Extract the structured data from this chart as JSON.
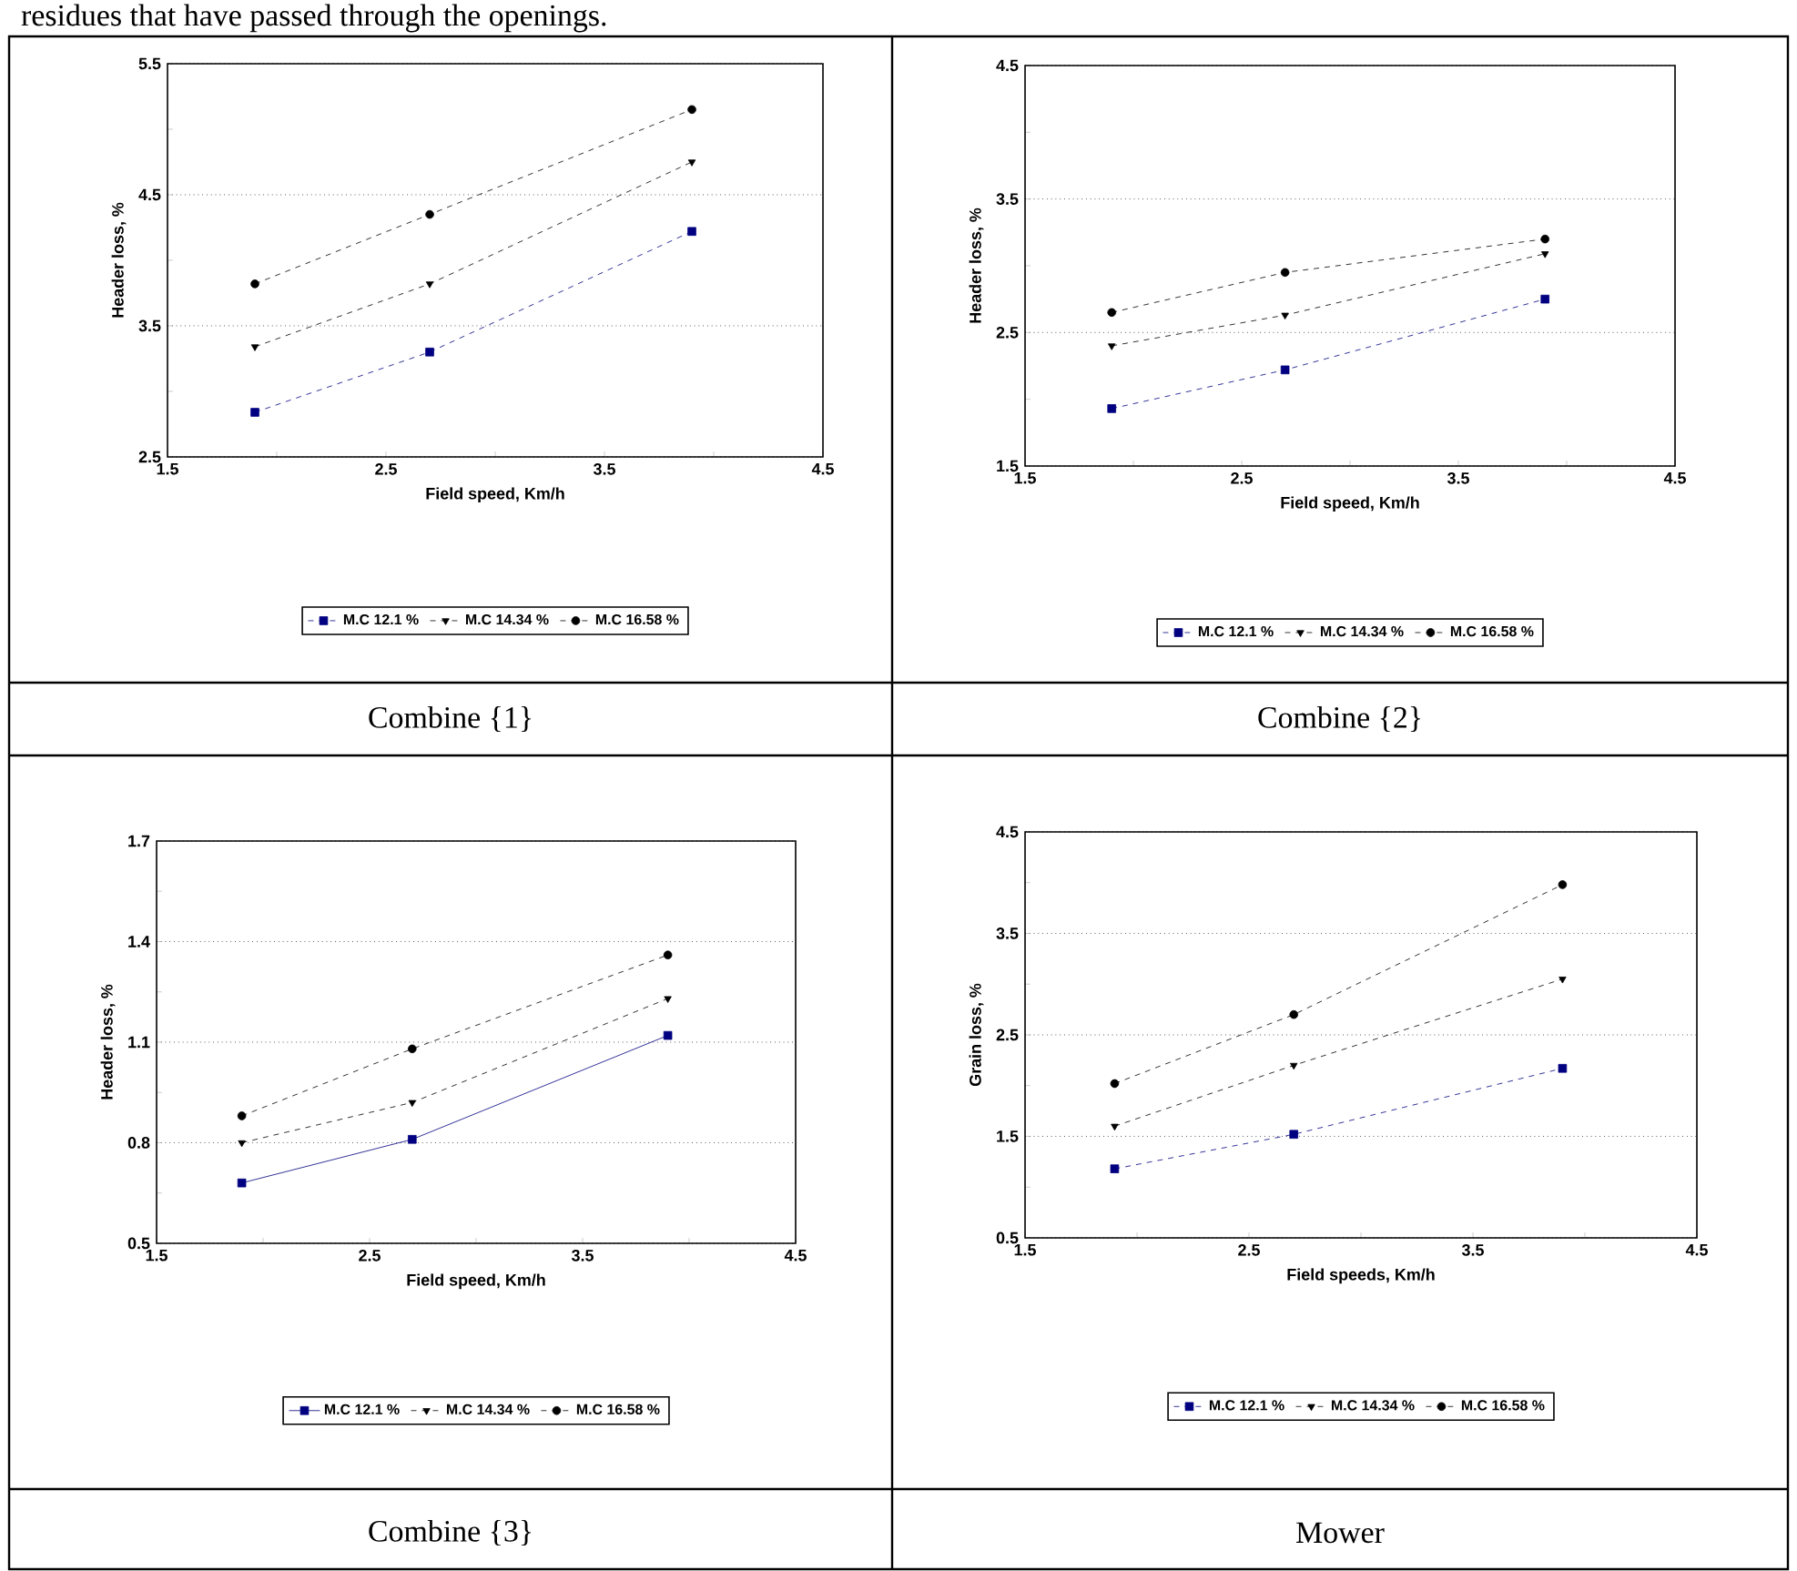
{
  "chart_data": [
    {
      "type": "line",
      "xlabel": "Field speed, Km/h",
      "ylabel": "Header loss, %",
      "annotations": [
        "residues that have passed through the openings.",
        "Combine {1}"
      ],
      "xlim": [
        1.5,
        4.5
      ],
      "xticks": [
        1.5,
        {
          "value": 2.0,
          "label": null
        },
        2.5,
        {
          "value": 3.0,
          "label": null
        },
        3.5,
        {
          "value": 4.0,
          "label": null
        },
        4.5
      ],
      "ylim": [
        2.5,
        5.5
      ],
      "yticks": [
        2.5,
        {
          "value": 3.0,
          "label": null
        },
        3.5,
        {
          "value": 4.0,
          "label": null
        },
        4.5,
        {
          "value": 5.0,
          "label": null
        },
        5.5
      ],
      "grid": "y",
      "legend": "bottom",
      "x": [
        1.9,
        2.7,
        3.9
      ],
      "series": [
        {
          "name": "M.C 12.1 %",
          "color": "#000080",
          "marker": "square",
          "line_style": "dashed",
          "values": [
            2.84,
            3.3,
            4.22
          ]
        },
        {
          "name": "M.C 14.34 %",
          "color": "#000000",
          "marker": "triangle",
          "line_style": "dashed",
          "values": [
            3.34,
            3.82,
            4.75
          ]
        },
        {
          "name": "M.C 16.58 %",
          "color": "#000000",
          "marker": "circle",
          "line_style": "dashed",
          "values": [
            3.82,
            4.35,
            5.15
          ]
        }
      ]
    },
    {
      "type": "line",
      "xlabel": "Field speed, Km/h",
      "ylabel": "Header loss, %",
      "annotations": [
        "Combine {2}"
      ],
      "xlim": [
        1.5,
        4.5
      ],
      "xticks": [
        1.5,
        {
          "value": 2.0,
          "label": null
        },
        2.5,
        {
          "value": 3.0,
          "label": null
        },
        3.5,
        {
          "value": 4.0,
          "label": null
        },
        4.5
      ],
      "ylim": [
        1.5,
        4.5
      ],
      "yticks": [
        1.5,
        {
          "value": 2.0,
          "label": null
        },
        2.5,
        {
          "value": 3.0,
          "label": null
        },
        3.5,
        {
          "value": 4.0,
          "label": null
        },
        4.5
      ],
      "grid": "y",
      "legend": "bottom",
      "x": [
        1.9,
        2.7,
        3.9
      ],
      "series": [
        {
          "name": "M.C 12.1 %",
          "color": "#000080",
          "marker": "square",
          "line_style": "dashed",
          "values": [
            1.93,
            2.22,
            2.75
          ]
        },
        {
          "name": "M.C 14.34 %",
          "color": "#000000",
          "marker": "triangle",
          "line_style": "dashed",
          "values": [
            2.4,
            2.63,
            3.09
          ]
        },
        {
          "name": "M.C 16.58 %",
          "color": "#000000",
          "marker": "circle",
          "line_style": "dashed",
          "values": [
            2.65,
            2.95,
            3.2
          ]
        }
      ]
    },
    {
      "type": "line",
      "xlabel": "Field speed, Km/h",
      "ylabel": "Header loss, %",
      "annotations": [
        "Combine {3}"
      ],
      "xlim": [
        1.5,
        4.5
      ],
      "xticks": [
        1.5,
        {
          "value": 2.0,
          "label": null
        },
        2.5,
        {
          "value": 3.0,
          "label": null
        },
        3.5,
        {
          "value": 4.0,
          "label": null
        },
        4.5
      ],
      "ylim": [
        0.5,
        1.7
      ],
      "yticks": [
        0.5,
        {
          "value": 0.65,
          "label": null
        },
        0.8,
        {
          "value": 0.95,
          "label": null
        },
        1.1,
        {
          "value": 1.25,
          "label": null
        },
        1.4,
        {
          "value": 1.55,
          "label": null
        },
        1.7
      ],
      "grid": "y",
      "legend": "bottom",
      "x": [
        1.9,
        2.7,
        3.9
      ],
      "series": [
        {
          "name": "M.C 12.1 %",
          "color": "#000080",
          "marker": "square",
          "line_style": "solid",
          "values": [
            0.68,
            0.81,
            1.12
          ]
        },
        {
          "name": "M.C 14.34 %",
          "color": "#000000",
          "marker": "triangle",
          "line_style": "dashed",
          "values": [
            0.8,
            0.92,
            1.23
          ]
        },
        {
          "name": "M.C 16.58 %",
          "color": "#000000",
          "marker": "circle",
          "line_style": "dashed",
          "values": [
            0.88,
            1.08,
            1.36
          ]
        }
      ]
    },
    {
      "type": "line",
      "xlabel": "Field speeds, Km/h",
      "ylabel": "Grain loss, %",
      "annotations": [
        "Mower"
      ],
      "xlim": [
        1.5,
        4.5
      ],
      "xticks": [
        1.5,
        {
          "value": 2.0,
          "label": null
        },
        2.5,
        {
          "value": 3.0,
          "label": null
        },
        3.5,
        {
          "value": 4.0,
          "label": null
        },
        4.5
      ],
      "ylim": [
        0.5,
        4.5
      ],
      "yticks": [
        0.5,
        {
          "value": 1.0,
          "label": null
        },
        1.5,
        {
          "value": 2.0,
          "label": null
        },
        2.5,
        {
          "value": 3.0,
          "label": null
        },
        3.5,
        {
          "value": 4.0,
          "label": null
        },
        4.5
      ],
      "grid": "y",
      "legend": "bottom",
      "x": [
        1.9,
        2.7,
        3.9
      ],
      "series": [
        {
          "name": "M.C 12.1 %",
          "color": "#000080",
          "marker": "square",
          "line_style": "dashed",
          "values": [
            1.18,
            1.52,
            2.17
          ]
        },
        {
          "name": "M.C 14.34 %",
          "color": "#000000",
          "marker": "triangle",
          "line_style": "dashed",
          "values": [
            1.6,
            2.2,
            3.05
          ]
        },
        {
          "name": "M.C 16.58 %",
          "color": "#000000",
          "marker": "circle",
          "line_style": "dashed",
          "values": [
            2.02,
            2.7,
            3.98
          ]
        }
      ]
    }
  ]
}
